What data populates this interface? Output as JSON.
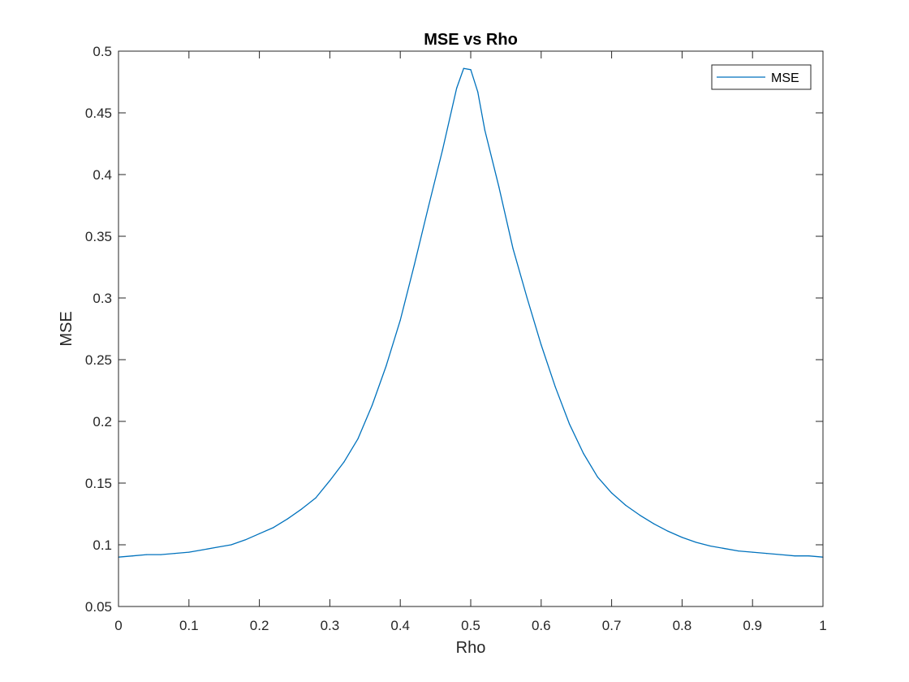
{
  "chart_data": {
    "type": "line",
    "title": "MSE vs Rho",
    "xlabel": "Rho",
    "ylabel": "MSE",
    "xlim": [
      0,
      1
    ],
    "ylim": [
      0.05,
      0.5
    ],
    "xticks": [
      0,
      0.1,
      0.2,
      0.3,
      0.4,
      0.5,
      0.6,
      0.7,
      0.8,
      0.9,
      1
    ],
    "xtick_labels": [
      "0",
      "0.1",
      "0.2",
      "0.3",
      "0.4",
      "0.5",
      "0.6",
      "0.7",
      "0.8",
      "0.9",
      "1"
    ],
    "yticks": [
      0.05,
      0.1,
      0.15,
      0.2,
      0.25,
      0.3,
      0.35,
      0.4,
      0.45,
      0.5
    ],
    "ytick_labels": [
      "0.05",
      "0.1",
      "0.15",
      "0.2",
      "0.25",
      "0.3",
      "0.35",
      "0.4",
      "0.45",
      "0.5"
    ],
    "grid": false,
    "legend_position": "top-right",
    "series": [
      {
        "name": "MSE",
        "color": "#0072BD",
        "x": [
          0,
          0.02,
          0.04,
          0.06,
          0.08,
          0.1,
          0.12,
          0.14,
          0.16,
          0.18,
          0.2,
          0.22,
          0.24,
          0.26,
          0.28,
          0.3,
          0.32,
          0.34,
          0.36,
          0.38,
          0.4,
          0.42,
          0.44,
          0.46,
          0.48,
          0.49,
          0.5,
          0.51,
          0.52,
          0.54,
          0.56,
          0.58,
          0.6,
          0.62,
          0.64,
          0.66,
          0.68,
          0.7,
          0.72,
          0.74,
          0.76,
          0.78,
          0.8,
          0.82,
          0.84,
          0.86,
          0.88,
          0.9,
          0.92,
          0.94,
          0.96,
          0.98,
          1.0
        ],
        "y": [
          0.09,
          0.091,
          0.092,
          0.092,
          0.093,
          0.094,
          0.096,
          0.098,
          0.1,
          0.104,
          0.109,
          0.114,
          0.121,
          0.129,
          0.138,
          0.152,
          0.167,
          0.186,
          0.213,
          0.245,
          0.282,
          0.327,
          0.374,
          0.42,
          0.47,
          0.486,
          0.485,
          0.467,
          0.436,
          0.39,
          0.34,
          0.3,
          0.262,
          0.228,
          0.198,
          0.174,
          0.155,
          0.142,
          0.132,
          0.124,
          0.117,
          0.111,
          0.106,
          0.102,
          0.099,
          0.097,
          0.095,
          0.094,
          0.093,
          0.092,
          0.091,
          0.091,
          0.09
        ]
      }
    ]
  }
}
